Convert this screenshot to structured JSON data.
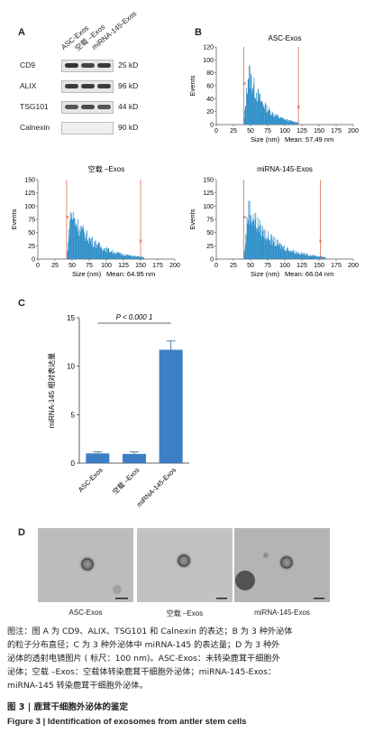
{
  "panel_letters": {
    "a": "A",
    "b": "B",
    "c": "C",
    "d": "D"
  },
  "western_blot": {
    "samples": [
      "ASC-Exos",
      "空载 –Exos",
      "miRNA-145-Exos"
    ],
    "rows": [
      {
        "protein": "CD9",
        "size": "25 kD",
        "bands": [
          0.9,
          0.8,
          0.85
        ]
      },
      {
        "protein": "ALIX",
        "size": "96 kD",
        "bands": [
          0.85,
          0.85,
          0.85
        ]
      },
      {
        "protein": "TSG101",
        "size": "44 kD",
        "bands": [
          0.75,
          0.8,
          0.75
        ]
      },
      {
        "protein": "Calnexin",
        "size": "90 kD",
        "bands": [
          0,
          0,
          0
        ]
      }
    ]
  },
  "chart_data": [
    {
      "type": "bar",
      "title": "ASC-Exos",
      "xlabel": "Size (nm)",
      "mean_label": "Mean: 57.49 nm",
      "ylabel": "Events",
      "xlim": [
        0,
        200
      ],
      "ylim": [
        0,
        120
      ],
      "xticks": [
        "0",
        "25",
        "50",
        "75",
        "100",
        "125",
        "150",
        "175",
        "200"
      ],
      "yticks": [
        "0",
        "20",
        "40",
        "60",
        "80",
        "100",
        "120"
      ],
      "distribution": {
        "start": 40,
        "peak_x": 47,
        "peak": 105,
        "end": 120
      },
      "markers": [
        40,
        120
      ],
      "color": "#2e8fc9"
    },
    {
      "type": "bar",
      "title": "空载 –Exos",
      "xlabel": "Size (nm)",
      "mean_label": "Mean: 64.95 nm",
      "ylabel": "Events",
      "xlim": [
        0,
        200
      ],
      "ylim": [
        0,
        150
      ],
      "xticks": [
        "0",
        "25",
        "50",
        "75",
        "100",
        "125",
        "150",
        "175",
        "200"
      ],
      "yticks": [
        "0",
        "25",
        "50",
        "75",
        "100",
        "125",
        "150"
      ],
      "distribution": {
        "start": 42,
        "peak_x": 48,
        "peak": 112,
        "end": 155
      },
      "markers": [
        42,
        150
      ],
      "color": "#2e8fc9"
    },
    {
      "type": "bar",
      "title": "miRNA-145-Exos",
      "xlabel": "Size (nm)",
      "mean_label": "Mean: 66.04 nm",
      "ylabel": "Events",
      "xlim": [
        0,
        200
      ],
      "ylim": [
        0,
        150
      ],
      "xticks": [
        "0",
        "25",
        "50",
        "75",
        "100",
        "125",
        "150",
        "175",
        "200"
      ],
      "yticks": [
        "0",
        "25",
        "50",
        "75",
        "100",
        "125",
        "150"
      ],
      "distribution": {
        "start": 40,
        "peak_x": 47,
        "peak": 122,
        "end": 160
      },
      "markers": [
        40,
        152
      ],
      "color": "#2e8fc9"
    },
    {
      "type": "bar",
      "categories": [
        "ASC-Exos",
        "空载 –Exos",
        "miRNA-145-Exos"
      ],
      "values": [
        1.0,
        0.95,
        11.7
      ],
      "errors": [
        0.15,
        0.2,
        0.9
      ],
      "ylabel": "miRNA-145 相对表达量",
      "ylim": [
        0,
        15
      ],
      "yticks": [
        "0",
        "5",
        "10",
        "15"
      ],
      "significance": "P < 0.000 1",
      "color": "#3d7fc4"
    }
  ],
  "tem": {
    "labels": [
      "ASC-Exos",
      "空载 –Exos",
      "miRNA-145-Exos"
    ]
  },
  "caption": {
    "lines": [
      "图注：图 A 为 CD9、ALIX、TSG101 和 Calnexin 的表达；B 为 3 种外泌体",
      "的粒子分布直径；C 为 3 种外泌体中 miRNA-145 的表达量；D 为 3 种外",
      "泌体的透射电镜图片 ( 标尺：100 nm)。ASC-Exos：未转染鹿茸干细胞外",
      "泌体；空载 –Exos：空载体转染鹿茸干细胞外泌体；miRNA-145-Exos：",
      "miRNA-145 转染鹿茸干细胞外泌体。"
    ],
    "title_cn": "图 3  |  鹿茸干细胞外泌体的鉴定",
    "title_en": "Figure 3  |  Identification of exosomes from antler stem cells"
  }
}
